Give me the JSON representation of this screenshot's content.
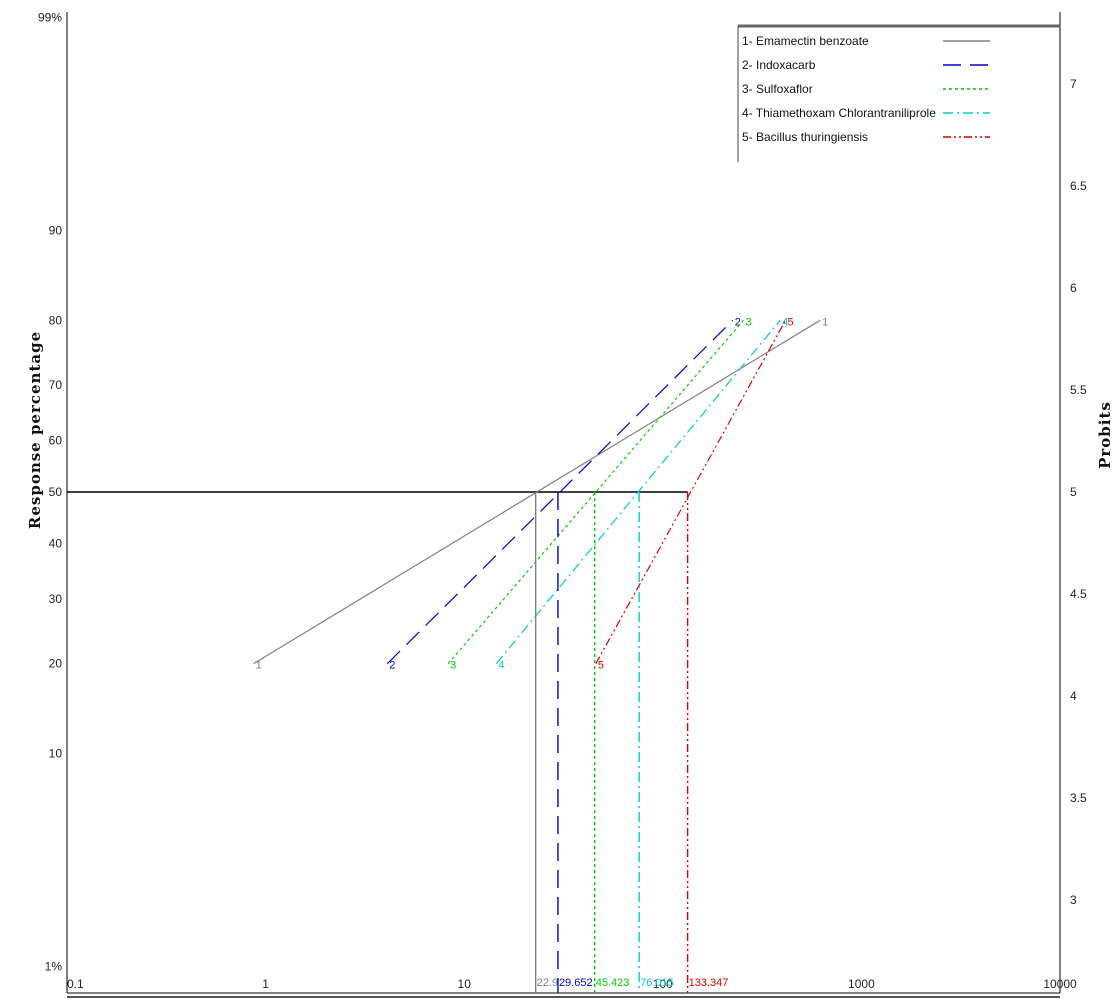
{
  "chart_data": {
    "type": "line",
    "xscale": "log",
    "xlim": [
      0.1,
      10000
    ],
    "x_ticks": [
      "0.1",
      "1",
      "10",
      "100",
      "1000",
      "10000"
    ],
    "y_left_ticks": [
      "99%",
      "90",
      "80",
      "70",
      "60",
      "50",
      "40",
      "30",
      "20",
      "10",
      "1%"
    ],
    "y_right_ticks": [
      "7",
      "6.5",
      "6",
      "5.5",
      "5",
      "4.5",
      "4",
      "3.5",
      "3"
    ],
    "y_left_label": "Response percentage",
    "y_right_label": "Probits",
    "legend_position": "top-right",
    "series": [
      {
        "id": "1",
        "name": "1- Emamectin benzoate",
        "color": "#808080",
        "dash": "",
        "start": {
          "x": 0.87,
          "y": 20
        },
        "end": {
          "x": 620,
          "y": 80
        },
        "lc50": 22.9,
        "lc50_label": "22.9"
      },
      {
        "id": "2",
        "name": "2- Indoxacarb",
        "color": "#0000cc",
        "dash": "18,9",
        "start": {
          "x": 4.1,
          "y": 20
        },
        "end": {
          "x": 225,
          "y": 80
        },
        "lc50": 29.652,
        "lc50_label": "29.652"
      },
      {
        "id": "3",
        "name": "3- Sulfoxaflor",
        "color": "#00cc00",
        "dash": "3,3",
        "start": {
          "x": 8.3,
          "y": 20
        },
        "end": {
          "x": 255,
          "y": 80
        },
        "lc50": 45.423,
        "lc50_label": "45.423"
      },
      {
        "id": "4",
        "name": "4- Thiamethoxam Chlorantraniliprole",
        "color": "#00cccc",
        "dash": "10,4,2,4",
        "start": {
          "x": 14.5,
          "y": 20
        },
        "end": {
          "x": 390,
          "y": 80
        },
        "lc50": 76.015,
        "lc50_label": "76.015"
      },
      {
        "id": "5",
        "name": "5- Bacillus thuringiensis",
        "color": "#dd0000",
        "dash": "8,3,2,3,2,3",
        "start": {
          "x": 46,
          "y": 20
        },
        "end": {
          "x": 415,
          "y": 80
        },
        "lc50": 133.347,
        "lc50_label": "133.347"
      }
    ]
  }
}
